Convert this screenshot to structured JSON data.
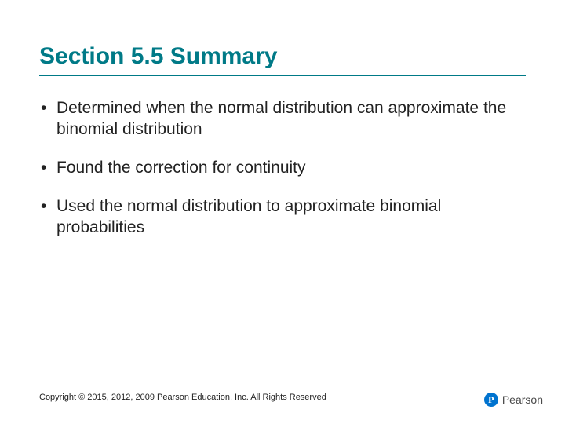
{
  "title": "Section 5.5 Summary",
  "title_color": "#007a87",
  "title_fontsize": 30,
  "title_fontweight": "bold",
  "title_border_color": "#007a87",
  "bullets": [
    "Determined when the normal distribution can approximate the binomial distribution",
    "Found the correction for continuity",
    "Used the normal distribution to approximate binomial probabilities"
  ],
  "bullet_fontsize": 21,
  "bullet_color": "#222222",
  "footer": "Copyright © 2015, 2012, 2009 Pearson Education, Inc. All Rights Reserved",
  "footer_fontsize": 11,
  "brand": {
    "icon_letter": "P",
    "icon_bg": "#0073cf",
    "icon_fg": "#ffffff",
    "name": "Pearson",
    "name_color": "#4a4a4a"
  },
  "background_color": "#ffffff",
  "slide_width": 720,
  "slide_height": 540
}
